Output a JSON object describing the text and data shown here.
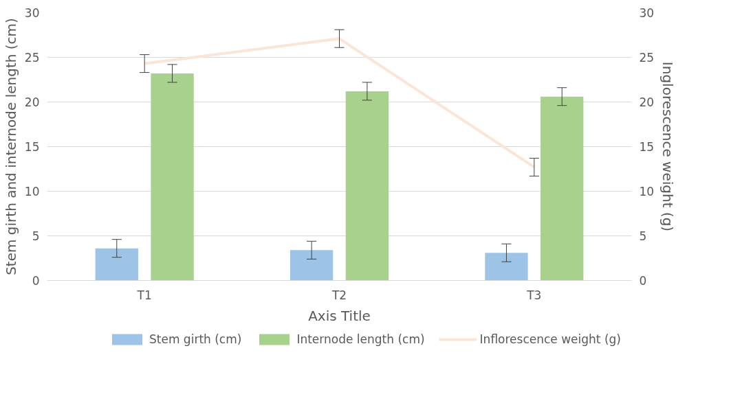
{
  "chart_data": {
    "type": "bar",
    "xlabel": "Axis Title",
    "ylabel": "Stem girth and internode length (cm)",
    "y2label": "Inglorescence weight (g)",
    "categories": [
      "T1",
      "T2",
      "T3"
    ],
    "series": [
      {
        "name": "Stem girth (cm)",
        "color": "#9dc3e6",
        "values": [
          3.6,
          3.4,
          3.1
        ],
        "errors": [
          1.0,
          1.0,
          1.0
        ]
      },
      {
        "name": "Internode length (cm)",
        "color": "#a9d18e",
        "values": [
          23.2,
          21.2,
          20.6
        ],
        "errors": [
          1.0,
          1.0,
          1.0
        ]
      },
      {
        "name": "Inflorescence weight (g)",
        "type": "line",
        "axis": "y2",
        "color": "#fbe5d6",
        "values": [
          24.3,
          27.1,
          12.7
        ],
        "errors": [
          1.0,
          1.0,
          1.0
        ]
      }
    ],
    "ylim": [
      0,
      30
    ],
    "yticks": [
      0,
      5,
      10,
      15,
      20,
      25,
      30
    ],
    "y2lim": [
      0,
      30
    ],
    "y2ticks": [
      0,
      5,
      10,
      15,
      20,
      25,
      30
    ],
    "grid": "y",
    "legend": "bottom"
  }
}
